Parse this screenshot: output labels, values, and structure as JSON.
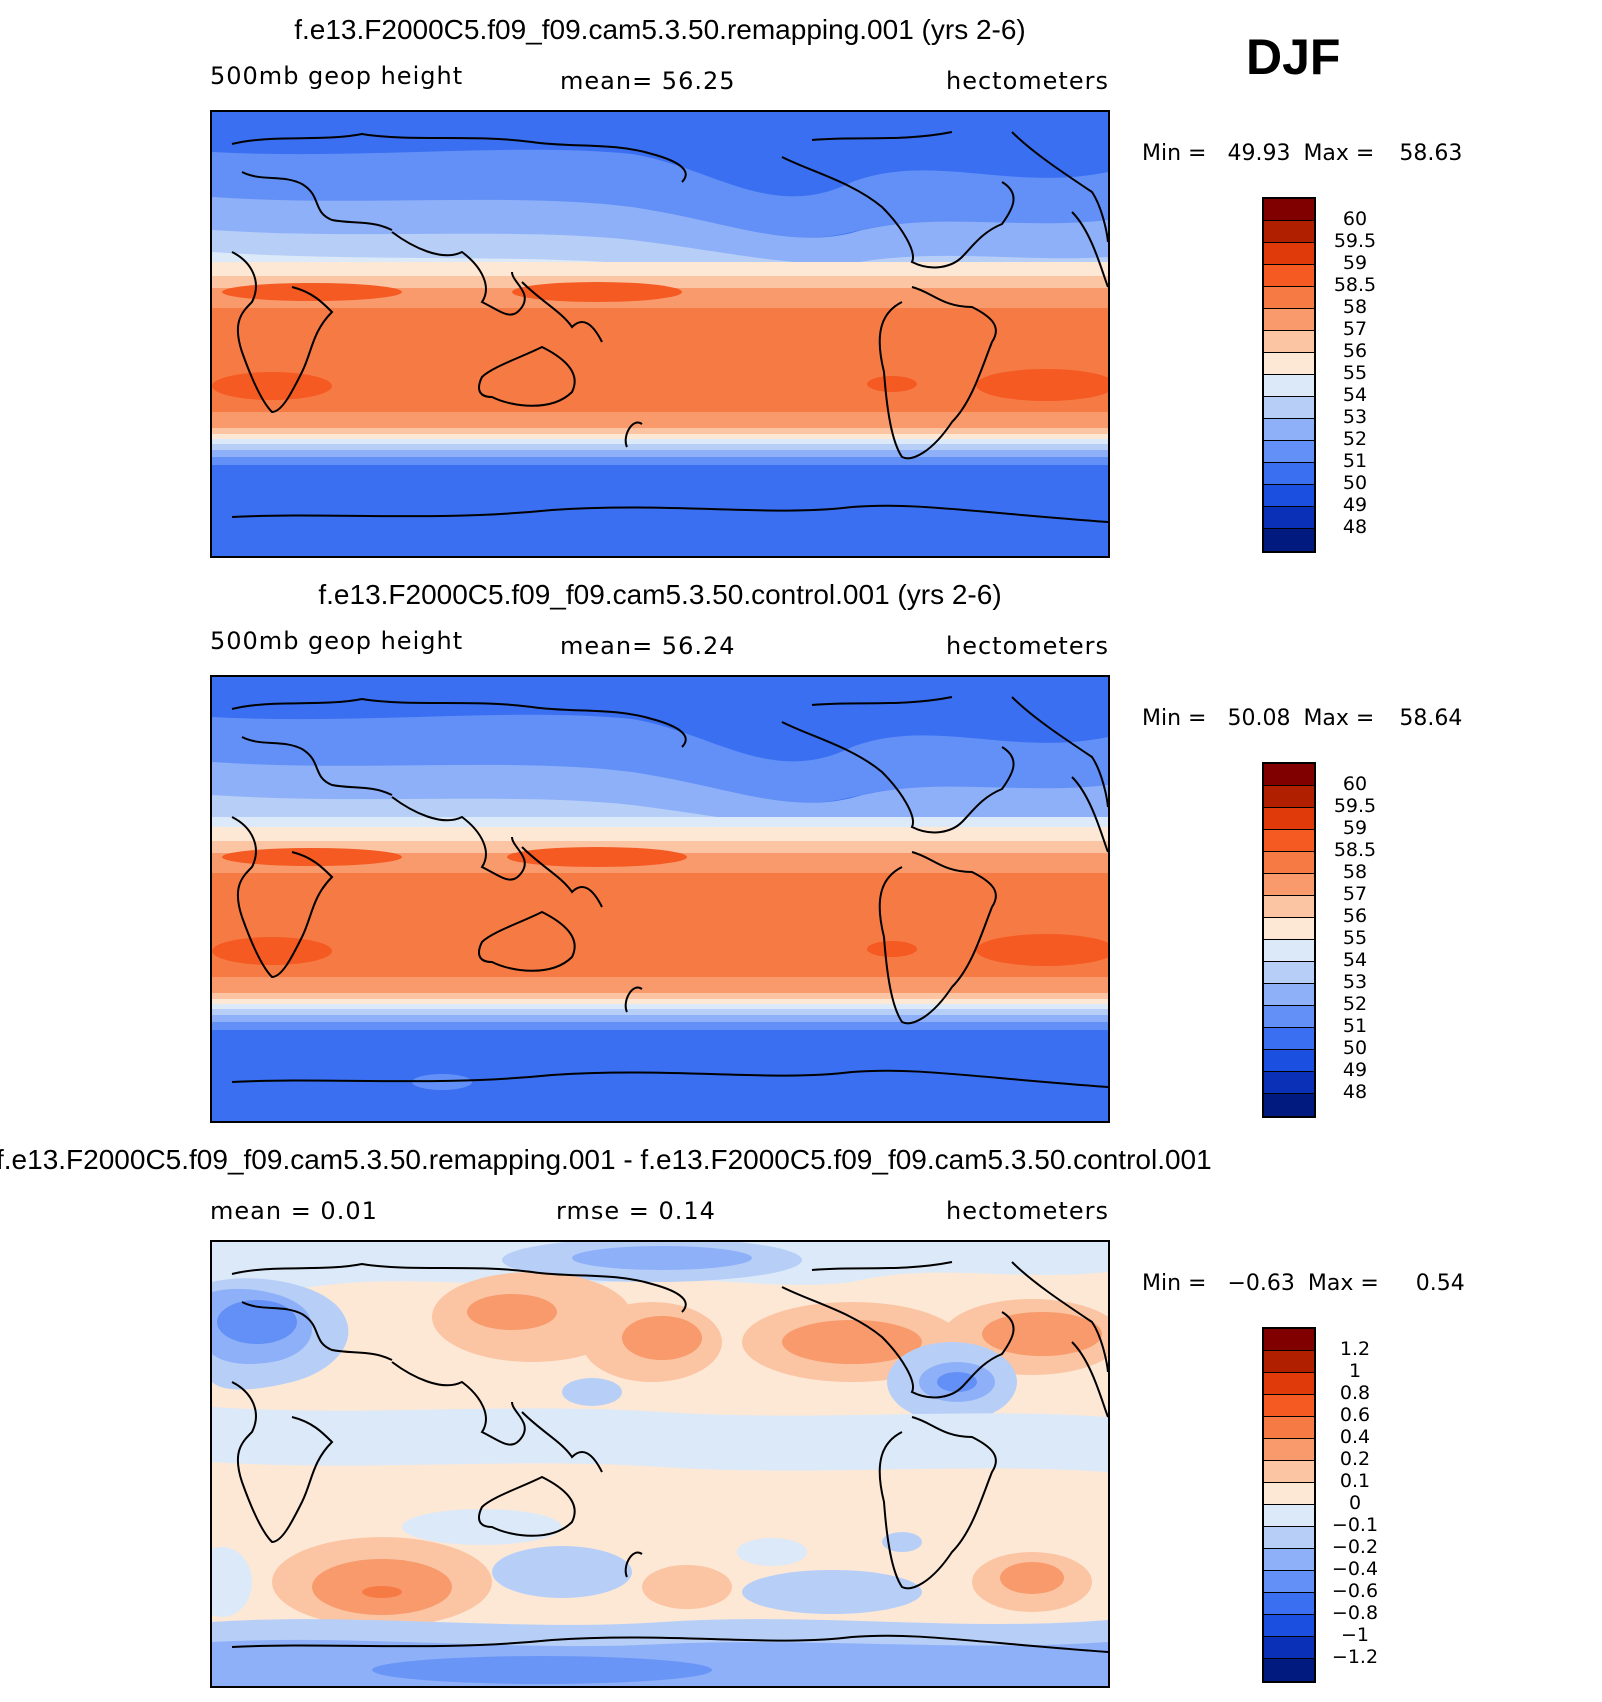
{
  "season": "DJF",
  "panels": [
    {
      "title": "f.e13.F2000C5.f09_f09.cam5.3.50.remapping.001 (yrs 2-6)",
      "left_label": "500mb geop height",
      "center_label": "mean=  56.25",
      "units": "hectometers",
      "min_label": "Min = ",
      "min_value": "49.93",
      "max_label": "Max = ",
      "max_value": "58.63",
      "colorbar_levels": [
        "60",
        "59.5",
        "59",
        "58.5",
        "58",
        "57",
        "56",
        "55",
        "54",
        "53",
        "52",
        "51",
        "50",
        "49",
        "48"
      ],
      "colorbar_colors": [
        "#800000",
        "#b02000",
        "#e03a0a",
        "#f45a22",
        "#f67a44",
        "#f89a6c",
        "#fbc5a3",
        "#fde8d6",
        "#dce9f8",
        "#b7cff7",
        "#8eb0f8",
        "#6390f6",
        "#3a6ff2",
        "#1a4fe0",
        "#0a30b8",
        "#001a80"
      ],
      "chart_data": {
        "type": "heatmap",
        "field": "500mb geopotential height",
        "units": "hectometers",
        "mean": 56.25,
        "min": 49.93,
        "max": 58.63,
        "levels": [
          48,
          49,
          50,
          51,
          52,
          53,
          54,
          55,
          56,
          57,
          58,
          58.5,
          59,
          59.5,
          60
        ]
      }
    },
    {
      "title": "f.e13.F2000C5.f09_f09.cam5.3.50.control.001 (yrs 2-6)",
      "left_label": "500mb geop height",
      "center_label": "mean=  56.24",
      "units": "hectometers",
      "min_label": "Min = ",
      "min_value": "50.08",
      "max_label": "Max = ",
      "max_value": "58.64",
      "colorbar_levels": [
        "60",
        "59.5",
        "59",
        "58.5",
        "58",
        "57",
        "56",
        "55",
        "54",
        "53",
        "52",
        "51",
        "50",
        "49",
        "48"
      ],
      "colorbar_colors": [
        "#800000",
        "#b02000",
        "#e03a0a",
        "#f45a22",
        "#f67a44",
        "#f89a6c",
        "#fbc5a3",
        "#fde8d6",
        "#dce9f8",
        "#b7cff7",
        "#8eb0f8",
        "#6390f6",
        "#3a6ff2",
        "#1a4fe0",
        "#0a30b8",
        "#001a80"
      ],
      "chart_data": {
        "type": "heatmap",
        "field": "500mb geopotential height",
        "units": "hectometers",
        "mean": 56.24,
        "min": 50.08,
        "max": 58.64,
        "levels": [
          48,
          49,
          50,
          51,
          52,
          53,
          54,
          55,
          56,
          57,
          58,
          58.5,
          59,
          59.5,
          60
        ]
      }
    },
    {
      "title": "f.e13.F2000C5.f09_f09.cam5.3.50.remapping.001 - f.e13.F2000C5.f09_f09.cam5.3.50.control.001",
      "left_label": "mean =   0.01",
      "center_label": "rmse =   0.14",
      "units": "hectometers",
      "min_label": "Min = ",
      "min_value": "−0.63",
      "max_label": "Max = ",
      "max_value": "0.54",
      "colorbar_levels": [
        "1.2",
        "1",
        "0.8",
        "0.6",
        "0.4",
        "0.2",
        "0.1",
        "0",
        "−0.1",
        "−0.2",
        "−0.4",
        "−0.6",
        "−0.8",
        "−1",
        "−1.2"
      ],
      "colorbar_colors": [
        "#800000",
        "#b02000",
        "#e03a0a",
        "#f45a22",
        "#f67a44",
        "#f89a6c",
        "#fbc5a3",
        "#fde8d6",
        "#dce9f8",
        "#b7cff7",
        "#8eb0f8",
        "#6390f6",
        "#3a6ff2",
        "#1a4fe0",
        "#0a30b8",
        "#001a80"
      ],
      "chart_data": {
        "type": "heatmap",
        "field": "difference (remapping - control)",
        "units": "hectometers",
        "mean": 0.01,
        "rmse": 0.14,
        "min": -0.63,
        "max": 0.54,
        "levels": [
          -1.2,
          -1,
          -0.8,
          -0.6,
          -0.4,
          -0.2,
          -0.1,
          0,
          0.1,
          0.2,
          0.4,
          0.6,
          0.8,
          1,
          1.2
        ]
      }
    }
  ]
}
